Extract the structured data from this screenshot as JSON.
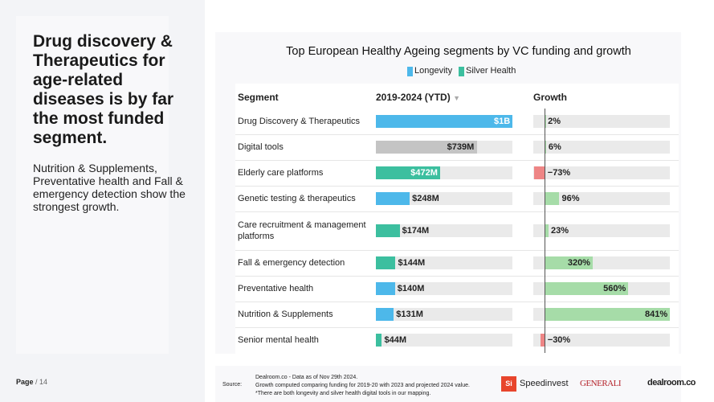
{
  "sidebar": {
    "headline": "Drug discovery & Therapeutics for age-related diseases is by far the most funded segment.",
    "body": "Nutrition & Supplements, Preventative health and Fall & emergency detection show the strongest growth."
  },
  "chart_data": {
    "type": "table-bar",
    "title": "Top European Healthy Ageing segments by VC funding and growth",
    "legend": [
      {
        "name": "Longevity",
        "color": "#4db8ea"
      },
      {
        "name": "Silver Health",
        "color": "#3cbf9f"
      }
    ],
    "other_color": "#c4c4c4",
    "columns": [
      "Segment",
      "2019-2024 (YTD)",
      "Growth"
    ],
    "funding_lim": [
      0,
      1000
    ],
    "growth_lim": [
      -80,
      841
    ],
    "growth_colors": {
      "positive": "#a6dca8",
      "negative": "#ee8585"
    },
    "rows": [
      {
        "segment": "Drug Discovery & Therapeutics",
        "group": 0,
        "funding": 1000,
        "funding_label": "$1B",
        "growth": 2,
        "growth_label": "2%"
      },
      {
        "segment": "Digital tools",
        "group": null,
        "funding": 739,
        "funding_label": "$739M",
        "growth": 6,
        "growth_label": "6%"
      },
      {
        "segment": "Elderly care platforms",
        "group": 1,
        "funding": 472,
        "funding_label": "$472M",
        "growth": -73,
        "growth_label": "−73%"
      },
      {
        "segment": "Genetic testing & therapeutics",
        "group": 0,
        "funding": 248,
        "funding_label": "$248M",
        "growth": 96,
        "growth_label": "96%"
      },
      {
        "segment": "Care recruitment & management platforms",
        "group": 1,
        "funding": 174,
        "funding_label": "$174M",
        "growth": 23,
        "growth_label": "23%"
      },
      {
        "segment": "Fall & emergency detection",
        "group": 1,
        "funding": 144,
        "funding_label": "$144M",
        "growth": 320,
        "growth_label": "320%"
      },
      {
        "segment": "Preventative health",
        "group": 0,
        "funding": 140,
        "funding_label": "$140M",
        "growth": 560,
        "growth_label": "560%"
      },
      {
        "segment": "Nutrition & Supplements",
        "group": 0,
        "funding": 131,
        "funding_label": "$131M",
        "growth": 841,
        "growth_label": "841%"
      },
      {
        "segment": "Senior mental health",
        "group": 1,
        "funding": 44,
        "funding_label": "$44M",
        "growth": -30,
        "growth_label": "−30%"
      }
    ]
  },
  "footer": {
    "page_label": "Page",
    "page_number": "/ 14",
    "source_label": "Source:",
    "source_lines": [
      "Dealroom.co - Data as of Nov 29th 2024.",
      "Growth computed comparing funding for 2019-20 with 2023 and projected 2024 value.",
      "*There are both longevity and silver health digital tools in our mapping."
    ],
    "logos": [
      "Speedinvest",
      "GENERALI",
      "dealroom.co"
    ]
  }
}
